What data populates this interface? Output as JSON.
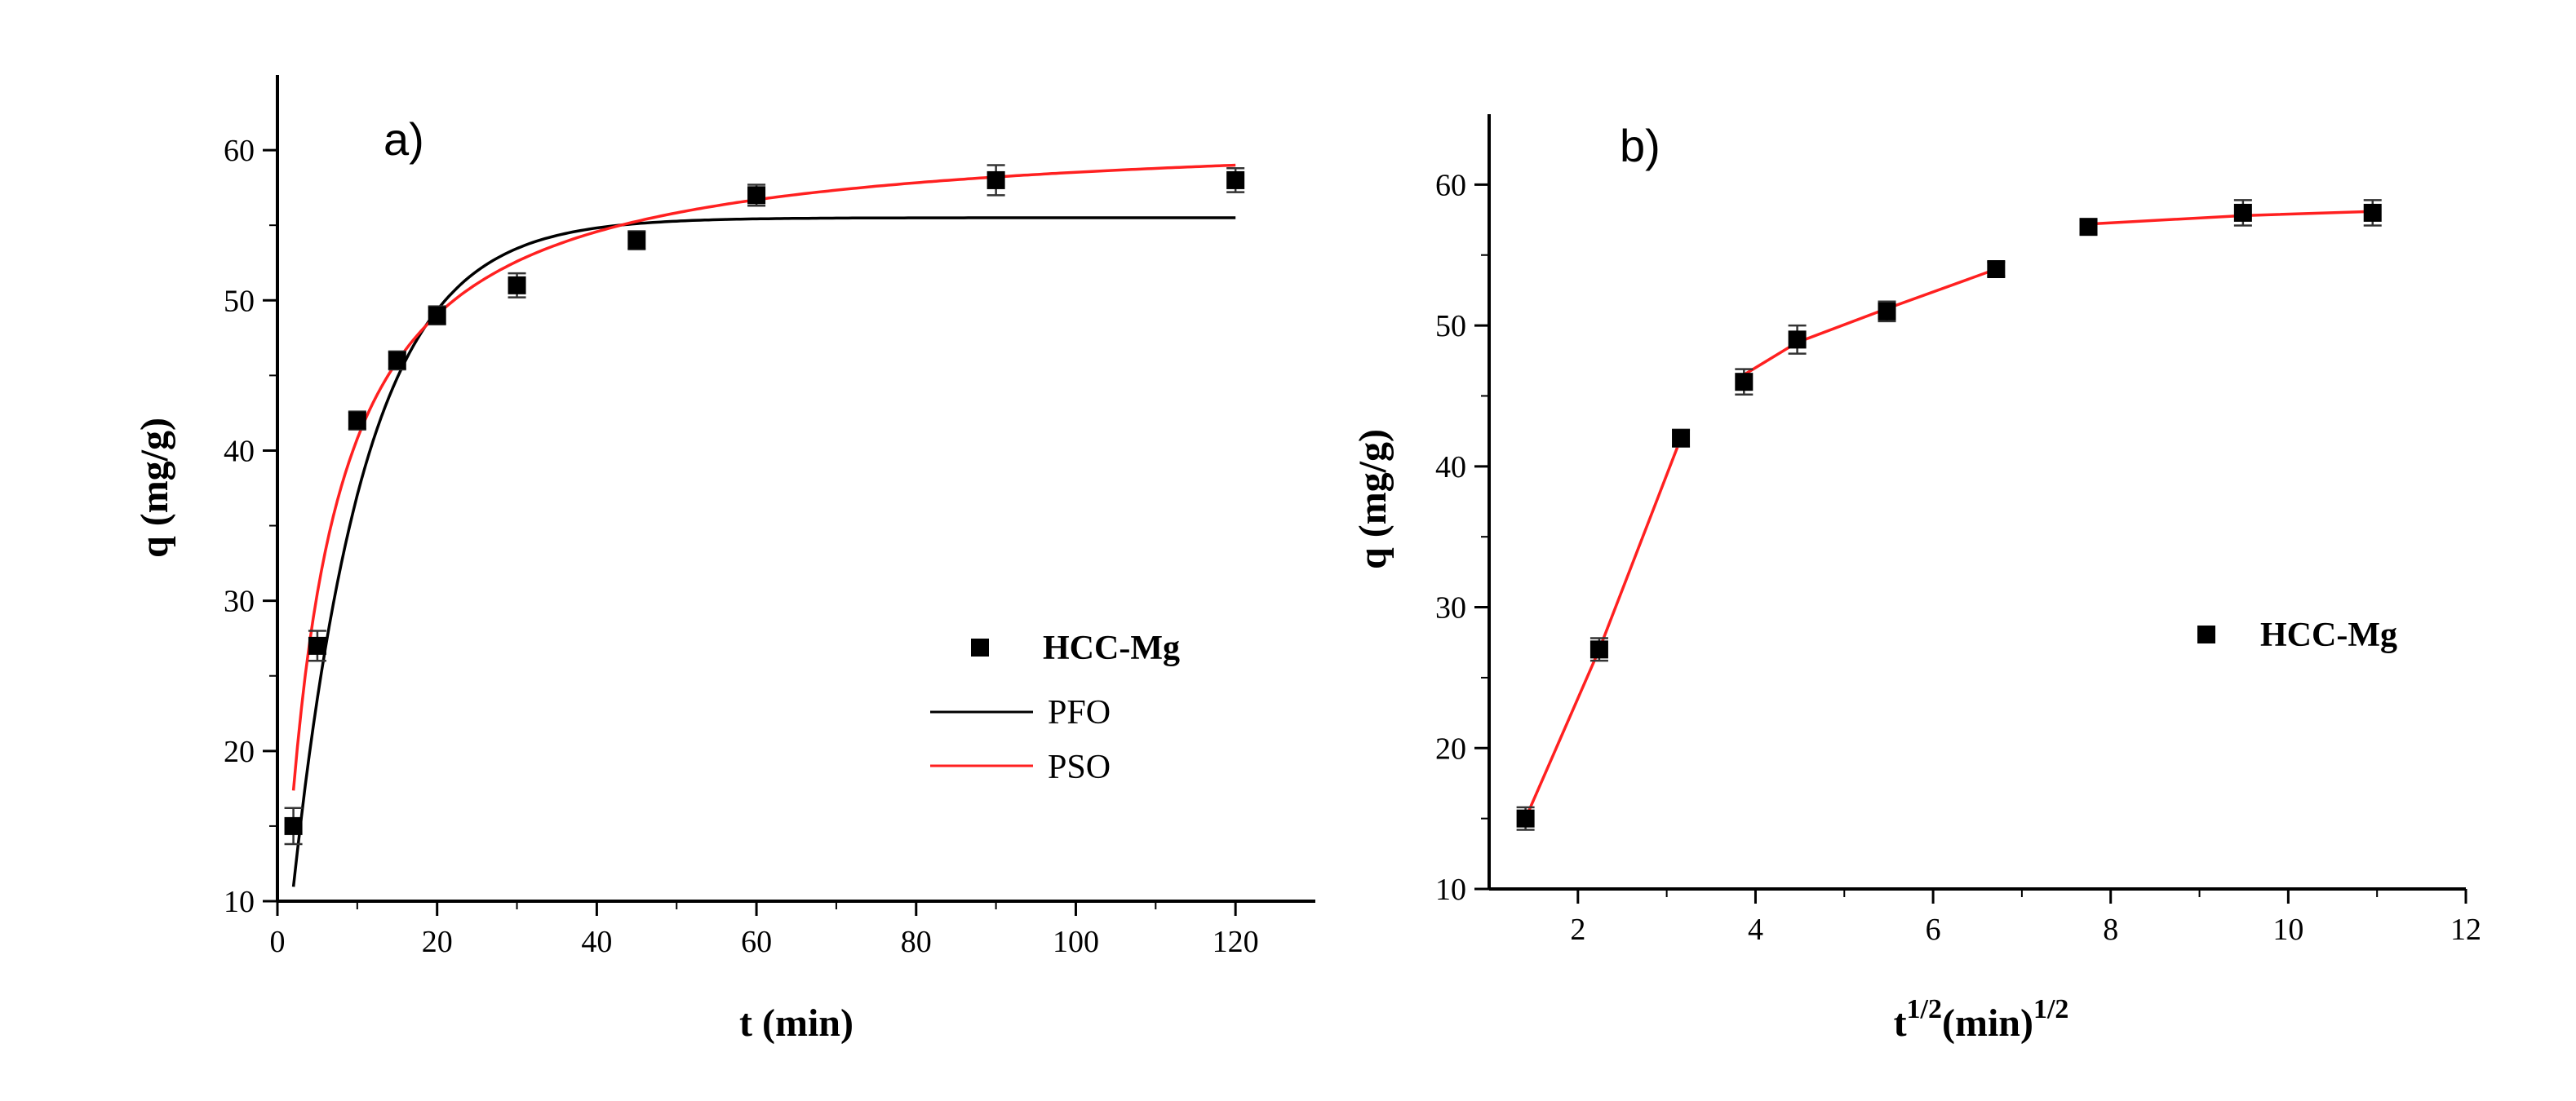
{
  "chart_data": [
    {
      "type": "scatter",
      "panel_label": "a)",
      "xlabel": "t (min)",
      "ylabel": "q (mg/g)",
      "xlim": [
        0,
        130
      ],
      "ylim": [
        10,
        65
      ],
      "xticks": [
        0,
        20,
        40,
        60,
        80,
        100,
        120
      ],
      "yticks": [
        10,
        20,
        30,
        40,
        50,
        60
      ],
      "xtick_labels": [
        "0",
        "20",
        "40",
        "60",
        "80",
        "100",
        "120"
      ],
      "ytick_labels": [
        "10",
        "20",
        "30",
        "40",
        "50",
        "60"
      ],
      "series": [
        {
          "name": "HCC-Mg",
          "kind": "markers",
          "color": "#000000",
          "x": [
            2,
            5,
            10,
            15,
            20,
            30,
            45,
            60,
            90,
            120
          ],
          "y": [
            15,
            27,
            42,
            46,
            49,
            51,
            54,
            57,
            58,
            58
          ],
          "err": [
            1.2,
            1.0,
            0.6,
            0.6,
            0.6,
            0.8,
            0.6,
            0.7,
            1.0,
            0.8
          ]
        },
        {
          "name": "PFO",
          "kind": "model-pfo",
          "color": "#000000",
          "qe": 55.5,
          "k": 0.11,
          "x_range": [
            2,
            120
          ]
        },
        {
          "name": "PSO",
          "kind": "model-pso",
          "color": "#ff2020",
          "qe": 61.5,
          "k": 0.0032,
          "x_range": [
            2,
            120
          ]
        }
      ],
      "legend": [
        "HCC-Mg",
        "PFO",
        "PSO"
      ],
      "legend_position": "center-right"
    },
    {
      "type": "scatter",
      "panel_label": "b)",
      "xlabel_base": "t",
      "xlabel_sup1": "1/2",
      "xlabel_mid": "(min)",
      "xlabel_sup2": "1/2",
      "ylabel": "q (mg/g)",
      "xlim": [
        1,
        12
      ],
      "ylim": [
        10,
        65
      ],
      "xticks": [
        2,
        4,
        6,
        8,
        10,
        12
      ],
      "yticks": [
        10,
        20,
        30,
        40,
        50,
        60
      ],
      "xtick_labels": [
        "2",
        "4",
        "6",
        "8",
        "10",
        "12"
      ],
      "ytick_labels": [
        "10",
        "20",
        "30",
        "40",
        "50",
        "60"
      ],
      "series": [
        {
          "name": "HCC-Mg",
          "kind": "markers",
          "color": "#000000",
          "x": [
            1.41,
            2.24,
            3.16,
            3.87,
            4.47,
            5.48,
            6.71,
            7.75,
            9.49,
            10.95
          ],
          "y": [
            15,
            27,
            42,
            46,
            49,
            51,
            54,
            57,
            58,
            58
          ],
          "err": [
            0.8,
            0.8,
            0.6,
            0.9,
            1.0,
            0.7,
            0.5,
            0.5,
            0.9,
            0.9
          ]
        },
        {
          "name": "fit",
          "kind": "segments",
          "color": "#ff2020",
          "segments": [
            [
              [
                1.41,
                15
              ],
              [
                2.24,
                27
              ],
              [
                3.16,
                42
              ]
            ],
            [
              [
                3.87,
                46.5
              ],
              [
                4.47,
                48.8
              ],
              [
                5.48,
                51.2
              ],
              [
                6.71,
                54
              ]
            ],
            [
              [
                7.75,
                57.2
              ],
              [
                9.49,
                57.8
              ],
              [
                10.95,
                58.1
              ]
            ]
          ]
        }
      ],
      "legend": [
        "HCC-Mg"
      ],
      "legend_position": "center-right"
    }
  ]
}
